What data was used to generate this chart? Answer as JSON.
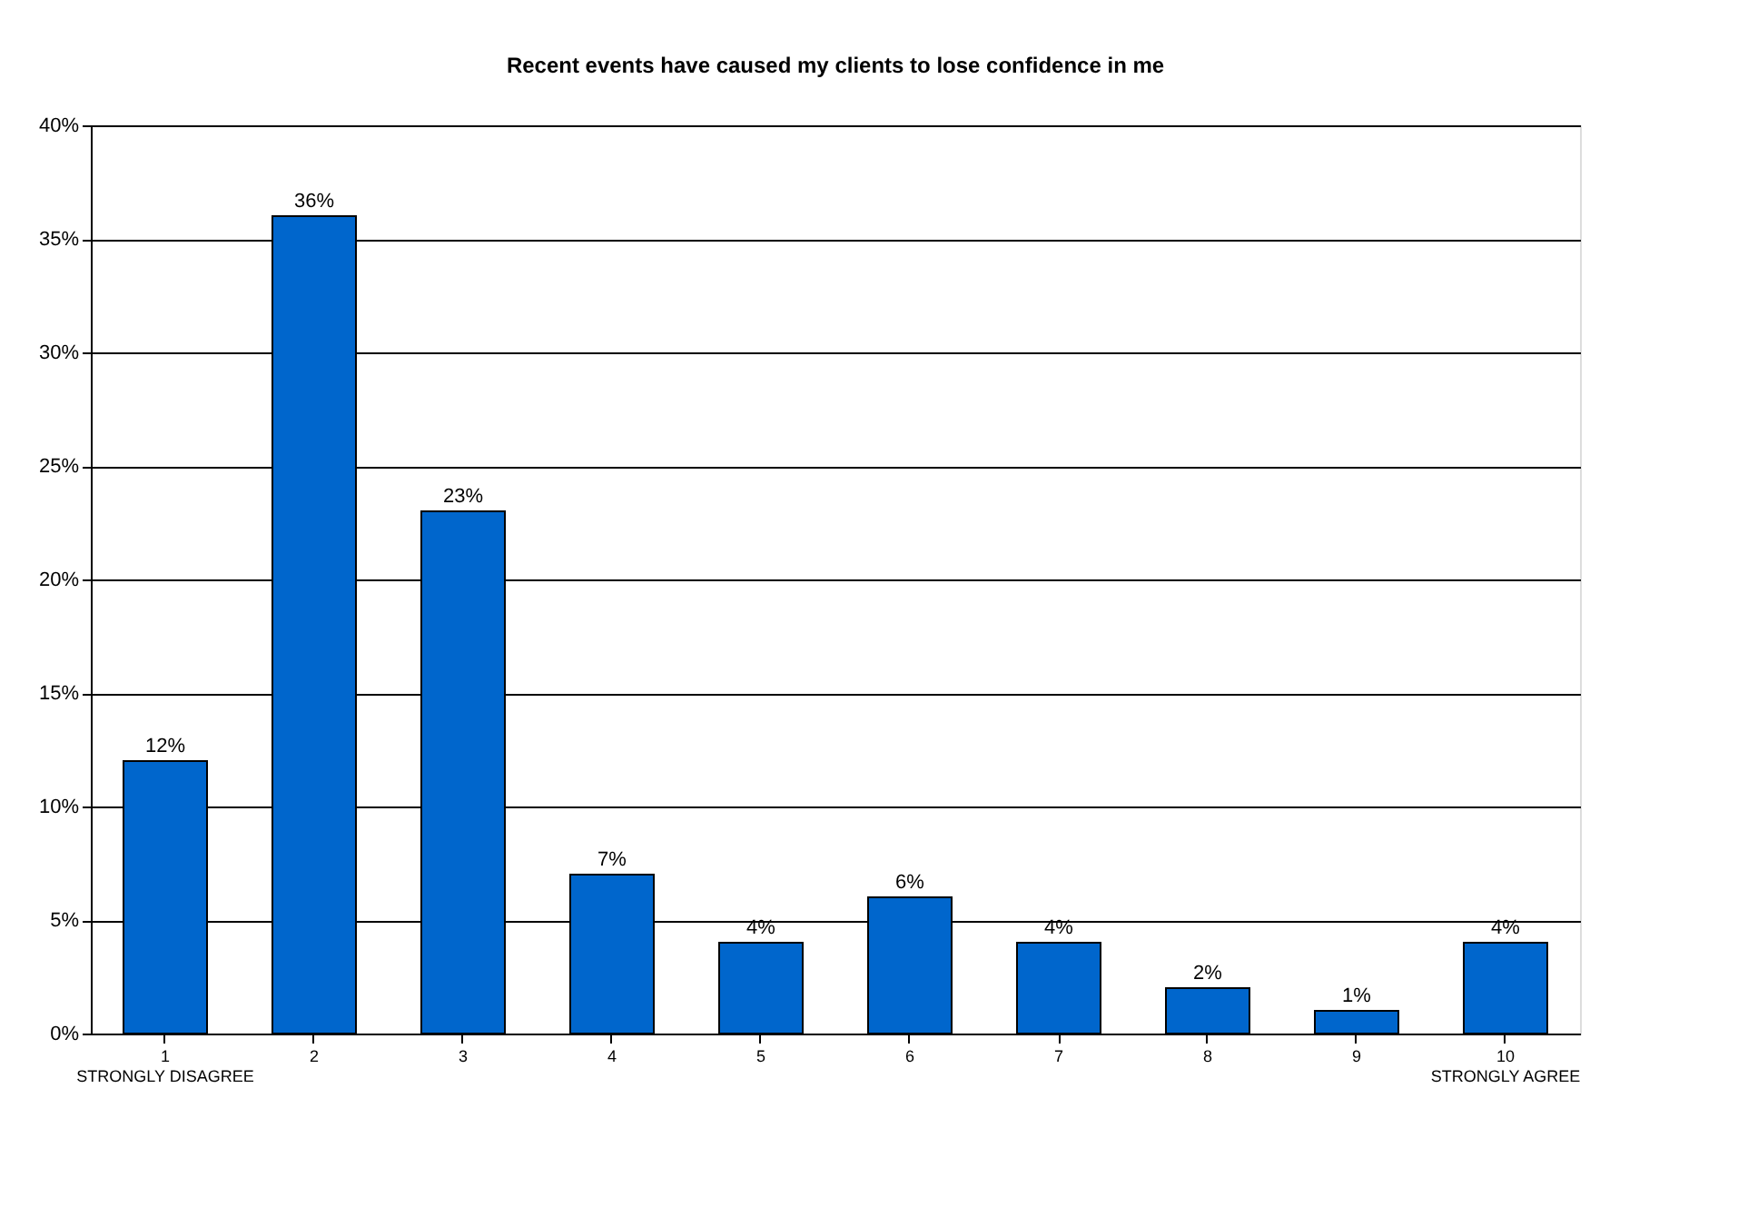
{
  "chart_data": {
    "type": "bar",
    "title": "Recent events have caused my clients to lose confidence in me",
    "categories": [
      "1\nSTRONGLY DISAGREE",
      "2",
      "3",
      "4",
      "5",
      "6",
      "7",
      "8",
      "9",
      "10\nSTRONGLY AGREE"
    ],
    "values": [
      12,
      36,
      23,
      7,
      4,
      6,
      4,
      2,
      1,
      4
    ],
    "value_labels": [
      "12%",
      "36%",
      "23%",
      "7%",
      "4%",
      "6%",
      "4%",
      "2%",
      "1%",
      "4%"
    ],
    "color": "#0066cc",
    "ylim": [
      0,
      40
    ],
    "yticks": [
      {
        "value": 0,
        "label": "0%"
      },
      {
        "value": 5,
        "label": "5%"
      },
      {
        "value": 10,
        "label": "10%"
      },
      {
        "value": 15,
        "label": "15%"
      },
      {
        "value": 20,
        "label": "20%"
      },
      {
        "value": 25,
        "label": "25%"
      },
      {
        "value": 30,
        "label": "30%"
      },
      {
        "value": 35,
        "label": "35%"
      },
      {
        "value": 40,
        "label": "40%"
      }
    ],
    "grid": "y"
  }
}
